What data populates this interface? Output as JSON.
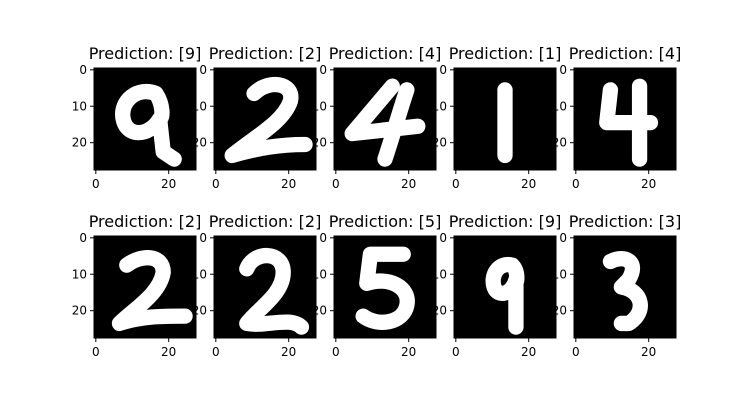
{
  "chart_data": [
    {
      "type": "heatmap",
      "title": "Prediction: [9]",
      "digit": "9",
      "xticks": [
        "0",
        "20"
      ],
      "yticks": [
        "0",
        "10",
        "20"
      ],
      "xlim": [
        -0.5,
        27.5
      ],
      "ylim": [
        27.5,
        -0.5
      ]
    },
    {
      "type": "heatmap",
      "title": "Prediction: [2]",
      "digit": "2",
      "xticks": [
        "0",
        "20"
      ],
      "yticks": [
        "0",
        "10",
        "20"
      ],
      "xlim": [
        -0.5,
        27.5
      ],
      "ylim": [
        27.5,
        -0.5
      ]
    },
    {
      "type": "heatmap",
      "title": "Prediction: [4]",
      "digit": "4",
      "xticks": [
        "0",
        "20"
      ],
      "yticks": [
        "0",
        "10",
        "20"
      ],
      "xlim": [
        -0.5,
        27.5
      ],
      "ylim": [
        27.5,
        -0.5
      ]
    },
    {
      "type": "heatmap",
      "title": "Prediction: [1]",
      "digit": "1",
      "xticks": [
        "0",
        "20"
      ],
      "yticks": [
        "0",
        "10",
        "20"
      ],
      "xlim": [
        -0.5,
        27.5
      ],
      "ylim": [
        27.5,
        -0.5
      ]
    },
    {
      "type": "heatmap",
      "title": "Prediction: [4]",
      "digit": "4b",
      "xticks": [
        "0",
        "20"
      ],
      "yticks": [
        "0",
        "10",
        "20"
      ],
      "xlim": [
        -0.5,
        27.5
      ],
      "ylim": [
        27.5,
        -0.5
      ]
    },
    {
      "type": "heatmap",
      "title": "Prediction: [2]",
      "digit": "2b",
      "xticks": [
        "0",
        "20"
      ],
      "yticks": [
        "0",
        "10",
        "20"
      ],
      "xlim": [
        -0.5,
        27.5
      ],
      "ylim": [
        27.5,
        -0.5
      ]
    },
    {
      "type": "heatmap",
      "title": "Prediction: [2]",
      "digit": "2c",
      "xticks": [
        "0",
        "20"
      ],
      "yticks": [
        "0",
        "10",
        "20"
      ],
      "xlim": [
        -0.5,
        27.5
      ],
      "ylim": [
        27.5,
        -0.5
      ]
    },
    {
      "type": "heatmap",
      "title": "Prediction: [5]",
      "digit": "5",
      "xticks": [
        "0",
        "20"
      ],
      "yticks": [
        "0",
        "10",
        "20"
      ],
      "xlim": [
        -0.5,
        27.5
      ],
      "ylim": [
        27.5,
        -0.5
      ]
    },
    {
      "type": "heatmap",
      "title": "Prediction: [9]",
      "digit": "9b",
      "xticks": [
        "0",
        "20"
      ],
      "yticks": [
        "0",
        "10",
        "20"
      ],
      "xlim": [
        -0.5,
        27.5
      ],
      "ylim": [
        27.5,
        -0.5
      ]
    },
    {
      "type": "heatmap",
      "title": "Prediction: [3]",
      "digit": "3",
      "xticks": [
        "0",
        "20"
      ],
      "yticks": [
        "0",
        "10",
        "20"
      ],
      "xlim": [
        -0.5,
        27.5
      ],
      "ylim": [
        27.5,
        -0.5
      ]
    }
  ],
  "colors": {
    "background": "#000000",
    "foreground": "#ffffff",
    "axis": "#000000"
  }
}
